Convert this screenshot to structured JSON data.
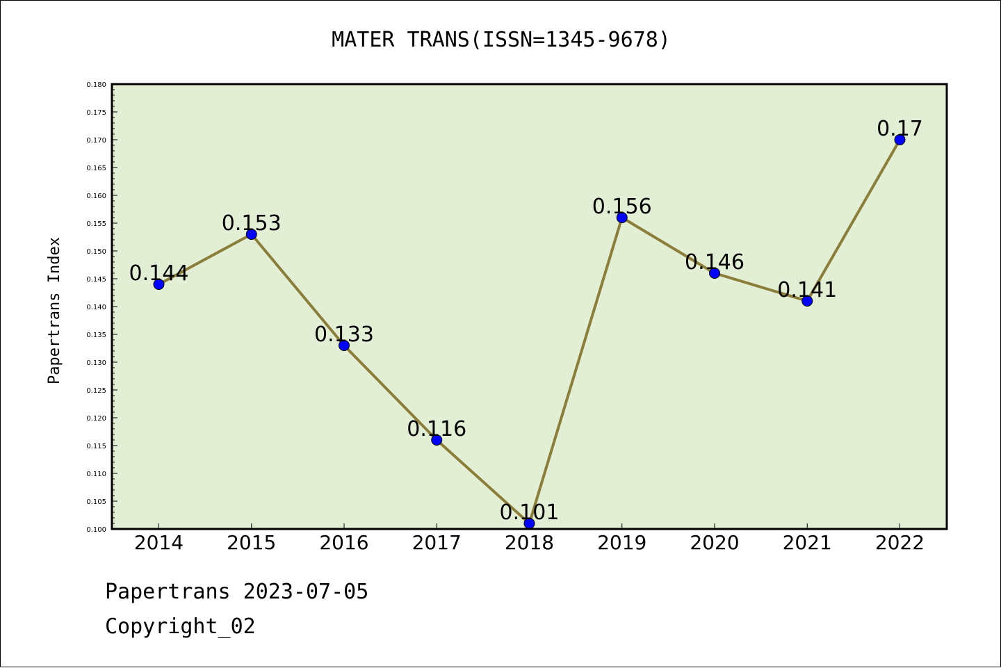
{
  "chart_data": {
    "type": "line",
    "title": "MATER TRANS(ISSN=1345-9678)",
    "xlabel": "",
    "ylabel": "Papertrans Index",
    "categories": [
      "2014",
      "2015",
      "2016",
      "2017",
      "2018",
      "2019",
      "2020",
      "2021",
      "2022"
    ],
    "values": [
      0.144,
      0.153,
      0.133,
      0.116,
      0.101,
      0.156,
      0.146,
      0.141,
      0.17
    ],
    "data_labels": [
      "0.144",
      "0.153",
      "0.133",
      "0.116",
      "0.101",
      "0.156",
      "0.146",
      "0.141",
      "0.17"
    ],
    "ylim": [
      0.1,
      0.18
    ],
    "yticks": [
      "0.100",
      "0.105",
      "0.110",
      "0.115",
      "0.120",
      "0.125",
      "0.130",
      "0.135",
      "0.140",
      "0.145",
      "0.150",
      "0.155",
      "0.160",
      "0.165",
      "0.170",
      "0.175",
      "0.180"
    ],
    "grid": false,
    "colors": {
      "plot_background": "#e2efd4",
      "line": "#8b7d3a",
      "marker": "#0000ff"
    }
  },
  "footer": {
    "line1": "Papertrans 2023-07-05",
    "line2": "Copyright_02"
  }
}
